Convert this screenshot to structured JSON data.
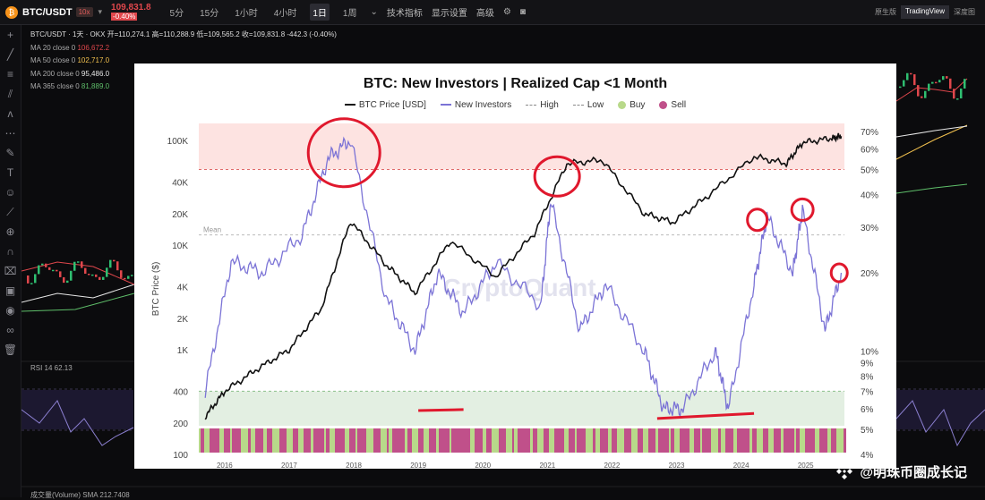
{
  "topbar": {
    "pair": "BTC/USDT",
    "leverage": "10x",
    "price": "109,831.8",
    "change": "-0.40%",
    "timeframes": [
      "5分",
      "15分",
      "1小时",
      "4小时",
      "1日",
      "1周"
    ],
    "active_timeframe": "1日",
    "tools": [
      "技术指标",
      "显示设置",
      "高级"
    ],
    "views": [
      "原生版",
      "TradingView",
      "深度图"
    ],
    "active_view": "TradingView"
  },
  "tv_legend": {
    "header": "BTC/USDT · 1天 · OKX  开=110,274.1  高=110,288.9  低=109,565.2  收=109,831.8  -442.3 (-0.40%)",
    "ma": [
      {
        "label": "MA 20 close 0",
        "value": "106,672.2",
        "color": "#e0474c"
      },
      {
        "label": "MA 50 close 0",
        "value": "102,717.0",
        "color": "#f2c14e"
      },
      {
        "label": "MA 200 close 0",
        "value": "95,486.0",
        "color": "#e8e8e8"
      },
      {
        "label": "MA 365 close 0",
        "value": "81,889.0",
        "color": "#5fbf6a"
      }
    ],
    "rsi": "RSI 14  62.13",
    "volume": "成交量(Volume) SMA  212.7408"
  },
  "panel": {
    "title": "BTC: New Investors | Realized Cap <1 Month",
    "legend": [
      "BTC Price [USD]",
      "New Investors",
      "High",
      "Low",
      "Buy",
      "Sell"
    ],
    "ylabel": "BTC Price ($)",
    "mean_label": "Mean",
    "watermark_text": "CryptoQuant",
    "colors": {
      "price": "#111111",
      "investors": "#7b73d6",
      "high_zone": "#fde3e1",
      "low_zone": "#e3efe2",
      "buy": "#b8d98a",
      "sell": "#c0508a",
      "circle": "#e0182d"
    }
  },
  "chart_data": {
    "type": "line",
    "title": "BTC: New Investors | Realized Cap <1 Month",
    "ylabel": "BTC Price ($)",
    "y_left_ticks": [
      "100K",
      "40K",
      "20K",
      "10K",
      "4K",
      "2K",
      "1K",
      "400",
      "200",
      "100"
    ],
    "y_right_ticks": [
      "70%",
      "60%",
      "50%",
      "40%",
      "30%",
      "20%",
      "10%",
      "9%",
      "8%",
      "7%",
      "6%",
      "5%",
      "4%"
    ],
    "x_ticks": [
      "2016",
      "2017",
      "2018",
      "2019",
      "2020",
      "2021",
      "2022",
      "2023",
      "2024",
      "2025"
    ],
    "thresholds": {
      "high": "50%",
      "low": "7%"
    },
    "series": [
      {
        "name": "BTC Price [USD]",
        "x": [
          2015.7,
          2016.0,
          2016.5,
          2017.0,
          2017.5,
          2017.95,
          2018.5,
          2018.95,
          2019.5,
          2020.2,
          2020.8,
          2021.3,
          2021.85,
          2022.5,
          2022.95,
          2023.5,
          2024.2,
          2024.7,
          2024.95,
          2025.4,
          2025.55
        ],
        "values": [
          230,
          400,
          650,
          1000,
          2500,
          17000,
          6500,
          3500,
          11000,
          5000,
          13000,
          60000,
          65000,
          20000,
          16500,
          30000,
          70000,
          60000,
          95000,
          105000,
          110000
        ]
      },
      {
        "name": "New Investors",
        "x": [
          2015.7,
          2016.1,
          2016.6,
          2017.2,
          2017.6,
          2017.95,
          2018.5,
          2018.95,
          2019.3,
          2019.7,
          2020.2,
          2020.9,
          2021.05,
          2021.5,
          2021.9,
          2022.5,
          2022.8,
          2023.1,
          2023.6,
          2023.8,
          2024.2,
          2024.4,
          2024.8,
          2024.95,
          2025.3,
          2025.55
        ],
        "values": [
          7,
          22,
          20,
          28,
          55,
          65,
          16,
          10,
          20,
          14,
          22,
          15,
          38,
          12,
          18,
          10,
          6,
          6,
          10,
          6,
          18,
          33,
          20,
          35,
          12,
          20
        ]
      }
    ],
    "xlim": [
      2015.6,
      2025.6
    ]
  }
}
